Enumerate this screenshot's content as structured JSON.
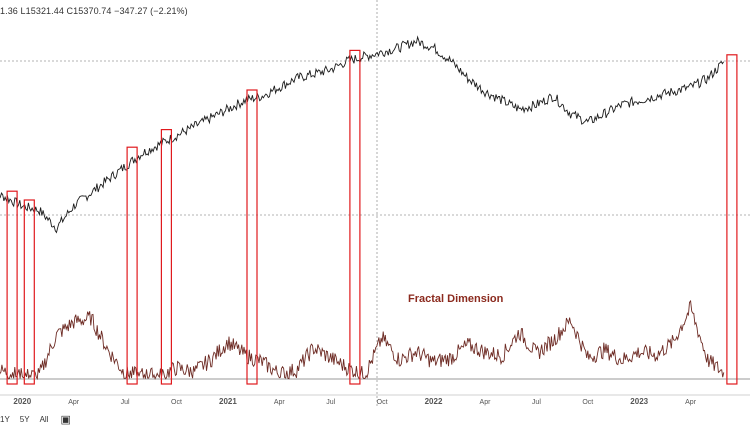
{
  "ohlc_readout": "1.36 L15321.44 C15370.74 −347.27 (−2.21%)",
  "indicator_title": "Fractal Dimension",
  "range_buttons": [
    "1Y",
    "5Y",
    "All"
  ],
  "colors": {
    "price_line": "#1c1c1c",
    "fractal_line": "#6e2c25",
    "highlight_box": "#e0191d",
    "grid_dash": "#9a9a9a",
    "crosshair": "#9a9a9a"
  },
  "chart_data": [
    {
      "type": "line",
      "title": "",
      "series": [
        {
          "values_note": "",
          "x": [
            "2019-11",
            "2019-12",
            "2020-01",
            "2020-02",
            "2020-03",
            "2020-04",
            "2020-05",
            "2020-06",
            "2020-07",
            "2020-08",
            "2020-09",
            "2020-10",
            "2020-11",
            "2020-12",
            "2021-01",
            "2021-02",
            "2021-03",
            "2021-04",
            "2021-05",
            "2021-06",
            "2021-07",
            "2021-08",
            "2021-09",
            "2021-10",
            "2021-11",
            "2021-12",
            "2022-01",
            "2022-02",
            "2022-03",
            "2022-04",
            "2022-05",
            "2022-06",
            "2022-07",
            "2022-08",
            "2022-09",
            "2022-10",
            "2022-11",
            "2022-12",
            "2023-01",
            "2023-02",
            "2023-03",
            "2023-04",
            "2023-05",
            "2023-06"
          ],
          "y": [
            0.27,
            0.24,
            0.2,
            0.18,
            0.1,
            0.2,
            0.26,
            0.32,
            0.38,
            0.44,
            0.48,
            0.52,
            0.56,
            0.6,
            0.64,
            0.68,
            0.7,
            0.74,
            0.78,
            0.8,
            0.82,
            0.86,
            0.88,
            0.9,
            0.92,
            0.95,
            0.92,
            0.86,
            0.78,
            0.72,
            0.68,
            0.64,
            0.66,
            0.7,
            0.62,
            0.58,
            0.62,
            0.66,
            0.68,
            0.7,
            0.72,
            0.74,
            0.78,
            0.86
          ]
        }
      ],
      "xaxis_ticks": [
        "2020",
        "Apr",
        "Jul",
        "Oct",
        "2021",
        "Apr",
        "Jul",
        "Oct",
        "2022",
        "Apr",
        "Jul",
        "Oct",
        "2023",
        "Apr"
      ]
    },
    {
      "type": "line",
      "title": "Fractal Dimension",
      "series": [
        {
          "name": "",
          "x": [
            "2019-11",
            "2019-12",
            "2020-01",
            "2020-02",
            "2020-03",
            "2020-04",
            "2020-05",
            "2020-06",
            "2020-07",
            "2020-08",
            "2020-09",
            "2020-10",
            "2020-11",
            "2020-12",
            "2021-01",
            "2021-02",
            "2021-03",
            "2021-04",
            "2021-05",
            "2021-06",
            "2021-07",
            "2021-08",
            "2021-09",
            "2021-10",
            "2021-11",
            "2021-12",
            "2022-01",
            "2022-02",
            "2022-03",
            "2022-04",
            "2022-05",
            "2022-06",
            "2022-07",
            "2022-08",
            "2022-09",
            "2022-10",
            "2022-11",
            "2022-12",
            "2023-01",
            "2023-02",
            "2023-03",
            "2023-04",
            "2023-05",
            "2023-06"
          ],
          "y": [
            0.12,
            0.08,
            0.04,
            0.05,
            0.45,
            0.58,
            0.62,
            0.3,
            0.06,
            0.05,
            0.04,
            0.12,
            0.08,
            0.2,
            0.38,
            0.25,
            0.18,
            0.06,
            0.1,
            0.32,
            0.22,
            0.12,
            0.05,
            0.42,
            0.2,
            0.28,
            0.18,
            0.22,
            0.35,
            0.28,
            0.24,
            0.48,
            0.26,
            0.4,
            0.6,
            0.22,
            0.3,
            0.2,
            0.28,
            0.25,
            0.38,
            0.72,
            0.2,
            0.06
          ]
        }
      ]
    }
  ],
  "highlight_windows": [
    {
      "start": "2019-12",
      "end": "2020-01"
    },
    {
      "start": "2020-01",
      "end": "2020-02"
    },
    {
      "start": "2020-07",
      "end": "2020-08"
    },
    {
      "start": "2020-09",
      "end": "2020-10"
    },
    {
      "start": "2021-02",
      "end": "2021-03"
    },
    {
      "start": "2021-08",
      "end": "2021-09"
    },
    {
      "start": "2023-06",
      "end": "2023-07"
    }
  ]
}
